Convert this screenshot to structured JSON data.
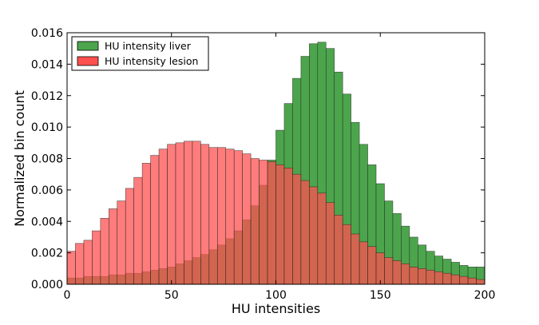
{
  "chart_data": {
    "type": "bar",
    "title": "",
    "xlabel": "HU intensities",
    "ylabel": "Normalized bin count",
    "xlim": [
      0,
      200
    ],
    "ylim": [
      0,
      0.016
    ],
    "xticks": [
      "0",
      "50",
      "100",
      "150",
      "200"
    ],
    "yticks": [
      "0.000",
      "0.002",
      "0.004",
      "0.006",
      "0.008",
      "0.010",
      "0.012",
      "0.014",
      "0.016"
    ],
    "bin_width": 4,
    "x": [
      2,
      6,
      10,
      14,
      18,
      22,
      26,
      30,
      34,
      38,
      42,
      46,
      50,
      54,
      58,
      62,
      66,
      70,
      74,
      78,
      82,
      86,
      90,
      94,
      98,
      102,
      106,
      110,
      114,
      118,
      122,
      126,
      130,
      134,
      138,
      142,
      146,
      150,
      154,
      158,
      162,
      166,
      170,
      174,
      178,
      182,
      186,
      190,
      194,
      198
    ],
    "legend_position": "top-left",
    "grid": false,
    "series": [
      {
        "name": "HU intensity liver",
        "color": "#4ca54c",
        "values": [
          0.0004,
          0.0004,
          0.0005,
          0.0005,
          0.0005,
          0.0006,
          0.0006,
          0.0007,
          0.0007,
          0.0008,
          0.0009,
          0.001,
          0.0011,
          0.0013,
          0.0015,
          0.0017,
          0.0019,
          0.0022,
          0.0025,
          0.0029,
          0.0034,
          0.0041,
          0.005,
          0.0063,
          0.0079,
          0.0098,
          0.0115,
          0.0131,
          0.0145,
          0.0153,
          0.0154,
          0.015,
          0.0135,
          0.0121,
          0.0103,
          0.0089,
          0.0076,
          0.0064,
          0.0053,
          0.0045,
          0.0037,
          0.003,
          0.0025,
          0.0021,
          0.0018,
          0.0016,
          0.0014,
          0.0012,
          0.0011,
          0.0011
        ]
      },
      {
        "name": "HU intensity lesion",
        "color": "#ff5050",
        "values": [
          0.0021,
          0.0026,
          0.0028,
          0.0034,
          0.0042,
          0.0048,
          0.0053,
          0.0061,
          0.0068,
          0.0077,
          0.0082,
          0.0086,
          0.0089,
          0.009,
          0.0091,
          0.0091,
          0.0089,
          0.0087,
          0.0087,
          0.0086,
          0.0085,
          0.0083,
          0.008,
          0.0079,
          0.0078,
          0.0076,
          0.0074,
          0.007,
          0.0066,
          0.0062,
          0.0058,
          0.0052,
          0.0044,
          0.0038,
          0.0032,
          0.0027,
          0.0024,
          0.002,
          0.0017,
          0.0015,
          0.0013,
          0.0011,
          0.001,
          0.0009,
          0.0008,
          0.0007,
          0.0006,
          0.0005,
          0.0004,
          0.0003
        ]
      }
    ],
    "overlap_color": "#c93a26"
  }
}
